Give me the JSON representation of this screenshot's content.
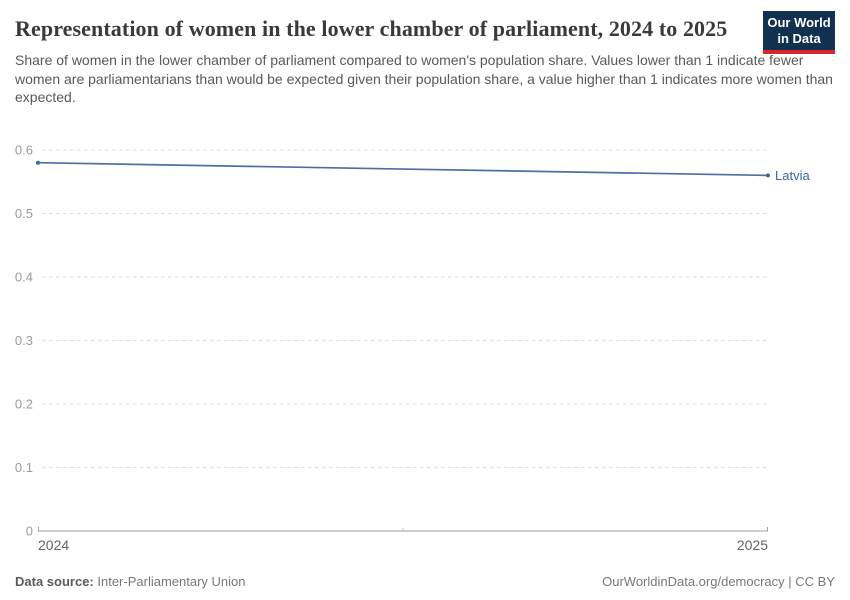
{
  "header": {
    "title": "Representation of women in the lower chamber of parliament, 2024 to 2025",
    "subtitle": "Share of women in the lower chamber of parliament compared to women's population share. Values lower than 1 indicate fewer women are parliamentarians than would be expected given their population share, a value higher than 1 indicates more women than expected.",
    "logo": {
      "line1": "Our World",
      "line2": "in Data",
      "bg_color": "#12304f",
      "accent_color": "#d7282d"
    }
  },
  "chart_data": {
    "type": "line",
    "title": "Representation of women in the lower chamber of parliament, 2024 to 2025",
    "x": [
      2024,
      2025
    ],
    "xtick_labels": [
      "2024",
      "2025"
    ],
    "series": [
      {
        "name": "Latvia",
        "values": [
          0.58,
          0.56
        ],
        "color": "#4e6fa3",
        "label_color": "#3d64a5"
      }
    ],
    "ylim": [
      0,
      0.6
    ],
    "yticks": [
      0,
      0.1,
      0.2,
      0.3,
      0.4,
      0.5,
      0.6
    ],
    "ytick_labels": [
      "0",
      "0.1",
      "0.2",
      "0.3",
      "0.4",
      "0.5",
      "0.6"
    ],
    "xlabel": "",
    "ylabel": "",
    "grid": "horizontal-dashed",
    "legend_position": "end-of-line-label",
    "colors": {
      "gridline": "#dcdcdc",
      "axis": "#9e9e9e",
      "ytick_label": "#9b9b9b",
      "xtick_label": "#666666"
    }
  },
  "footer": {
    "datasource_label": "Data source:",
    "datasource_value": "Inter-Parliamentary Union",
    "credit": "OurWorldinData.org/democracy | CC BY"
  }
}
